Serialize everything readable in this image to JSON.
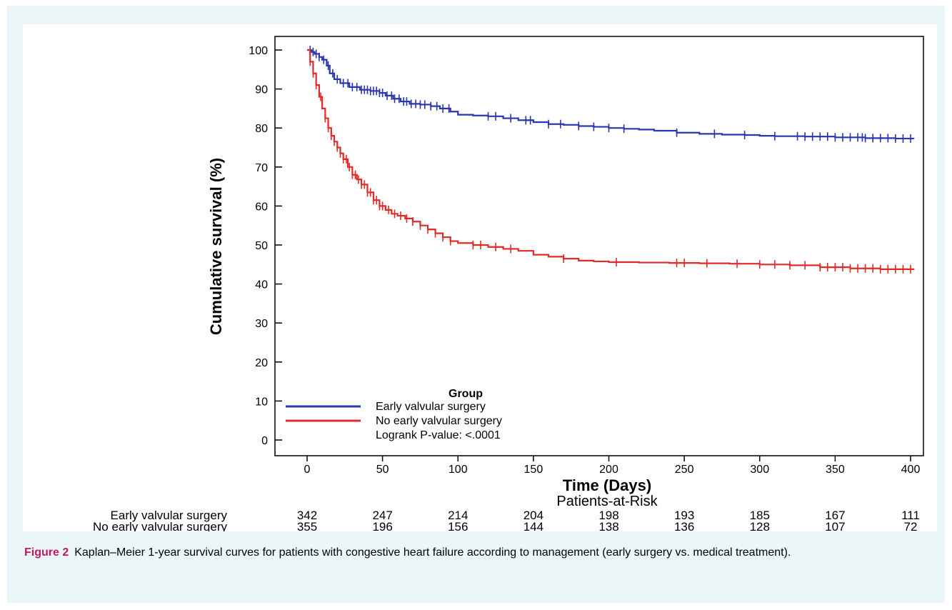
{
  "chart_data": {
    "type": "line",
    "xlabel": "Time (Days)",
    "ylabel": "Cumulative survival (%)",
    "xlim": [
      0,
      400
    ],
    "ylim": [
      0,
      100
    ],
    "x_ticks": [
      0,
      50,
      100,
      150,
      200,
      250,
      300,
      350,
      400
    ],
    "y_ticks": [
      0,
      10,
      20,
      30,
      40,
      50,
      60,
      70,
      80,
      90,
      100
    ],
    "grid": false,
    "legend": {
      "title": "Group",
      "placement": "bottom-left",
      "entries": [
        "Early valvular surgery",
        "No early valvular surgery"
      ],
      "note": "Logrank P-value: <.0001"
    },
    "series": [
      {
        "name": "Early valvular surgery",
        "color": "#2a35b0",
        "x": [
          0,
          3,
          5,
          8,
          10,
          13,
          15,
          18,
          22,
          28,
          35,
          42,
          48,
          52,
          57,
          62,
          68,
          75,
          82,
          88,
          95,
          100,
          110,
          120,
          130,
          140,
          150,
          160,
          170,
          180,
          190,
          200,
          210,
          220,
          230,
          245,
          260,
          275,
          290,
          300,
          310,
          330,
          350,
          370,
          390,
          402
        ],
        "y": [
          100,
          99.5,
          99,
          98.2,
          97.5,
          96,
          94,
          92.5,
          91.5,
          90.5,
          89.8,
          89.5,
          89,
          88.3,
          87.5,
          86.8,
          86.2,
          86,
          85.6,
          85,
          84.2,
          83.4,
          83.2,
          83,
          82.5,
          82,
          81.5,
          81,
          80.8,
          80.5,
          80.3,
          80,
          79.8,
          79.6,
          79.3,
          78.8,
          78.5,
          78.3,
          78.2,
          78,
          77.9,
          77.8,
          77.6,
          77.4,
          77.3,
          77.2
        ],
        "censor_x": [
          2,
          4,
          6,
          8,
          11,
          14,
          17,
          20,
          24,
          27,
          30,
          33,
          36,
          38,
          40,
          42,
          44,
          46,
          48,
          50,
          53,
          56,
          58,
          61,
          64,
          66,
          69,
          72,
          75,
          78,
          82,
          86,
          90,
          94,
          120,
          125,
          135,
          145,
          148,
          160,
          168,
          180,
          190,
          200,
          210,
          245,
          270,
          290,
          310,
          325,
          330,
          335,
          340,
          345,
          350,
          355,
          360,
          365,
          368,
          370,
          375,
          380,
          385,
          390,
          395,
          400
        ]
      },
      {
        "name": "No early valvular surgery",
        "color": "#e02a27",
        "x": [
          0,
          2,
          4,
          6,
          8,
          10,
          12,
          14,
          16,
          18,
          20,
          22,
          24,
          27,
          30,
          33,
          36,
          40,
          44,
          48,
          52,
          56,
          60,
          65,
          70,
          75,
          80,
          85,
          90,
          95,
          100,
          110,
          120,
          130,
          140,
          150,
          160,
          170,
          180,
          190,
          200,
          220,
          240,
          260,
          280,
          300,
          320,
          340,
          360,
          380,
          402
        ],
        "y": [
          100,
          97,
          94,
          91,
          88,
          85,
          82.5,
          80,
          78,
          76.5,
          75,
          73.5,
          72,
          70,
          68,
          66.8,
          65.5,
          63.5,
          61.5,
          60,
          59,
          58,
          57.5,
          56.8,
          56,
          55,
          54,
          53,
          52,
          51,
          50.5,
          50,
          49.5,
          49,
          48.5,
          47.5,
          47,
          46.5,
          46,
          45.8,
          45.6,
          45.5,
          45.4,
          45.3,
          45.2,
          45,
          44.8,
          44.3,
          44,
          43.8,
          43.6
        ],
        "censor_x": [
          2,
          4,
          6,
          9,
          12,
          14,
          16,
          18,
          20,
          22,
          24,
          26,
          28,
          30,
          32,
          34,
          36,
          38,
          40,
          42,
          44,
          46,
          48,
          50,
          54,
          58,
          62,
          66,
          70,
          75,
          80,
          85,
          90,
          95,
          110,
          115,
          125,
          135,
          170,
          205,
          245,
          250,
          265,
          285,
          300,
          310,
          320,
          330,
          340,
          345,
          350,
          355,
          360,
          365,
          370,
          375,
          380,
          385,
          390,
          395,
          400
        ]
      }
    ]
  },
  "risk_table": {
    "title": "Patients-at-Risk",
    "rows": [
      {
        "label": "Early valvular surgery",
        "counts": [
          "342",
          "247",
          "214",
          "204",
          "198",
          "193",
          "185",
          "167",
          "111"
        ]
      },
      {
        "label": "No early valvular surgery",
        "counts": [
          "355",
          "196",
          "156",
          "144",
          "138",
          "136",
          "128",
          "107",
          "72"
        ]
      }
    ]
  },
  "caption": {
    "label": "Figure 2",
    "text": "Kaplan–Meier 1-year survival curves for patients with congestive heart failure according to management (early surgery vs. medical treatment)."
  }
}
